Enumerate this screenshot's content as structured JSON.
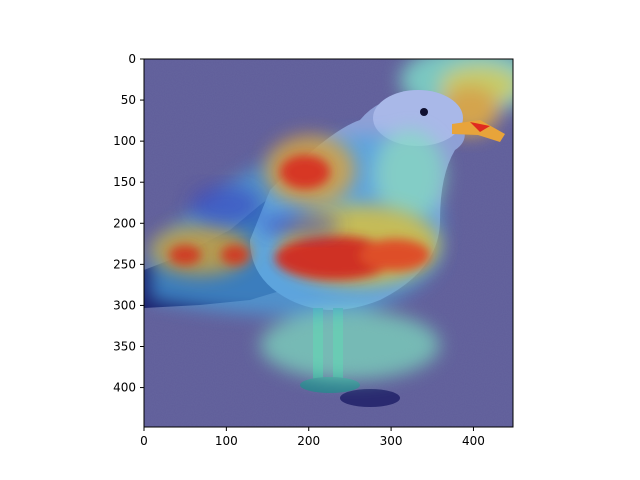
{
  "image": {
    "subject": "seagull-standing-on-sand",
    "overlay": "jet-colormap-heatmap",
    "colors": {
      "sand": "#6f6b8e",
      "bird_body": "#9aa6d8",
      "heat_low": "#3a3ad0",
      "heat_mid": "#7fd9c8",
      "heat_high": "#e02020",
      "beak": "#f0a020"
    }
  },
  "axes": {
    "x_ticks": [
      "0",
      "100",
      "200",
      "300",
      "400"
    ],
    "y_ticks": [
      "0",
      "50",
      "100",
      "150",
      "200",
      "250",
      "300",
      "350",
      "400"
    ],
    "x_tick_values": [
      0,
      100,
      200,
      300,
      400
    ],
    "y_tick_values": [
      0,
      50,
      100,
      150,
      200,
      250,
      300,
      350,
      400
    ],
    "xlim": [
      0,
      448
    ],
    "ylim": [
      448,
      0
    ]
  }
}
